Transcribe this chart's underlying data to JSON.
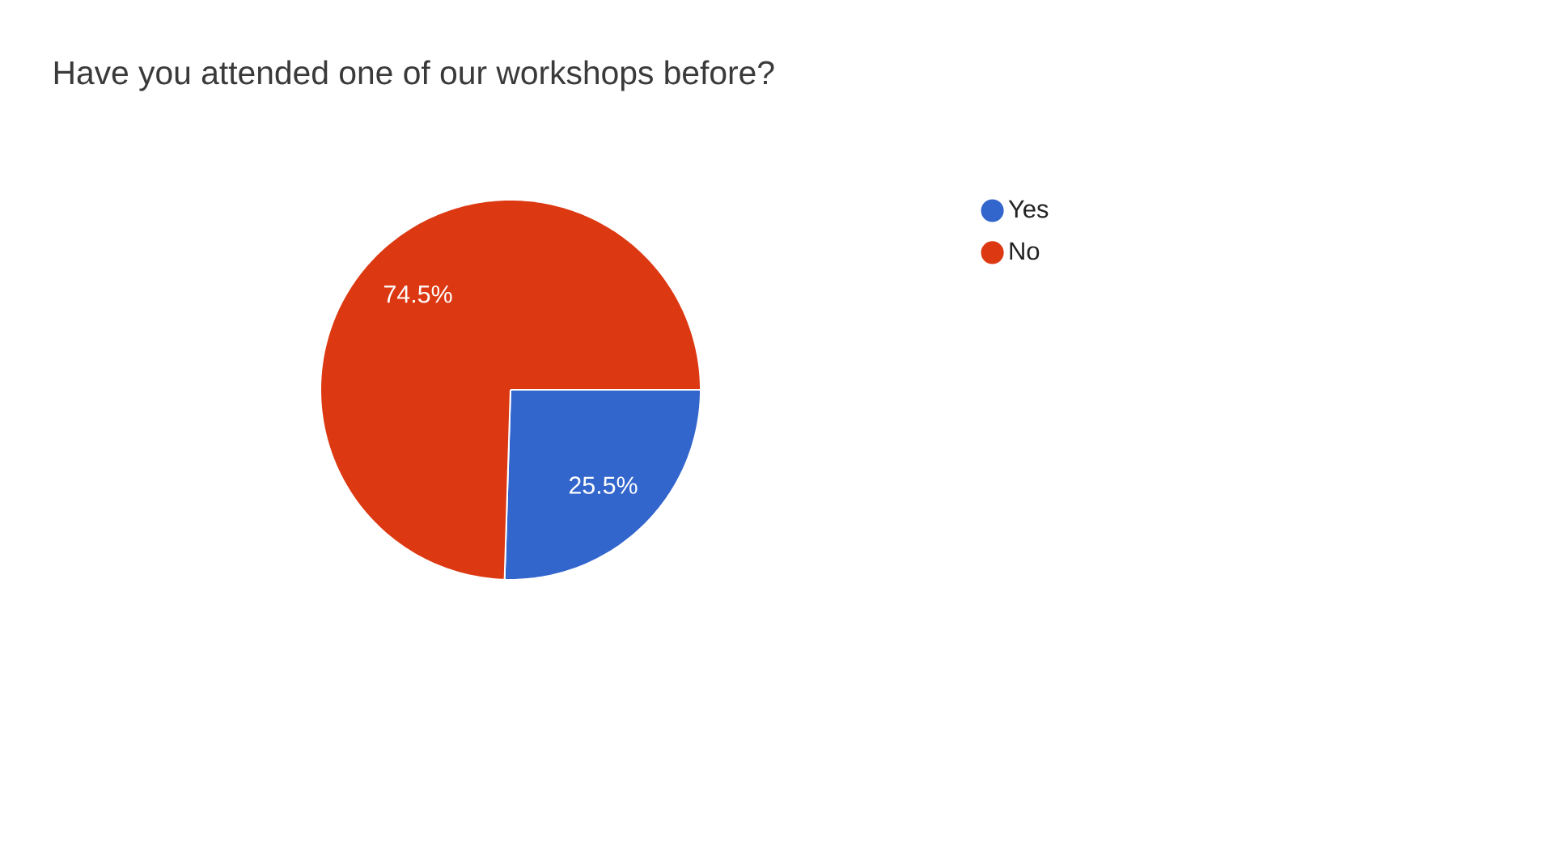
{
  "chart_data": {
    "type": "pie",
    "title": "Have you attended one of our workshops before?",
    "categories": [
      "Yes",
      "No"
    ],
    "values": [
      25.5,
      74.5
    ],
    "colors": [
      "#3366cc",
      "#dc3912"
    ],
    "value_labels": [
      "25.5%",
      "74.5%"
    ],
    "legend": "right"
  }
}
